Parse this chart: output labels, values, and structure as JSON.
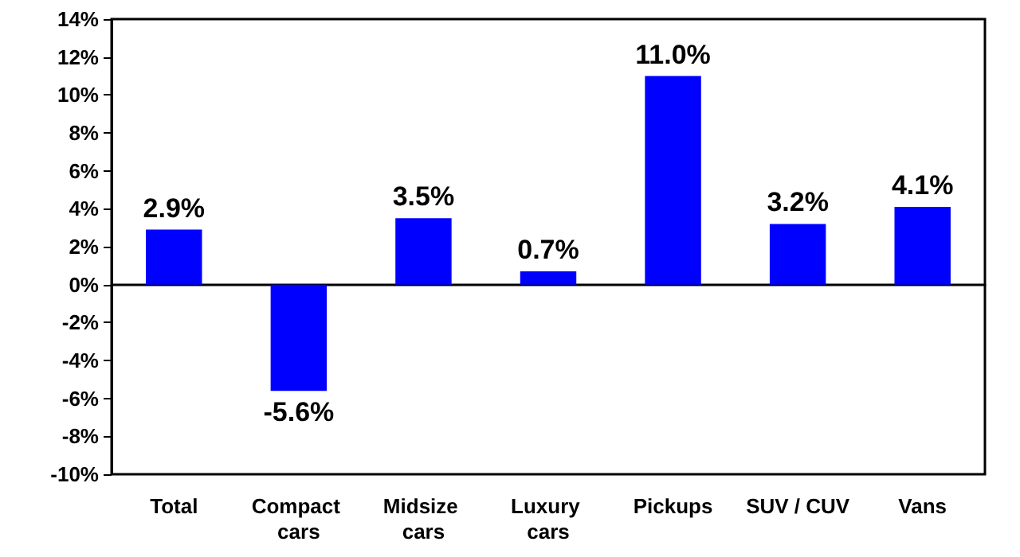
{
  "chart_data": {
    "type": "bar",
    "categories": [
      "Total",
      "Compact cars",
      "Midsize cars",
      "Luxury cars",
      "Pickups",
      "SUV / CUV",
      "Vans"
    ],
    "values": [
      2.9,
      -5.6,
      3.5,
      0.7,
      11.0,
      3.2,
      4.1
    ],
    "value_labels": [
      "2.9%",
      "-5.6%",
      "3.5%",
      "0.7%",
      "11.0%",
      "3.2%",
      "4.1%"
    ],
    "ylim": [
      -10,
      14
    ],
    "yticks": [
      {
        "value": -10,
        "label": "-10%"
      },
      {
        "value": -8,
        "label": "-8%"
      },
      {
        "value": -6,
        "label": "-6%"
      },
      {
        "value": -4,
        "label": "-4%"
      },
      {
        "value": -2,
        "label": "-2%"
      },
      {
        "value": 0,
        "label": "0%"
      },
      {
        "value": 2,
        "label": "2%"
      },
      {
        "value": 4,
        "label": "4%"
      },
      {
        "value": 6,
        "label": "6%"
      },
      {
        "value": 8,
        "label": "8%"
      },
      {
        "value": 10,
        "label": "10%"
      },
      {
        "value": 12,
        "label": "12%"
      },
      {
        "value": 14,
        "label": "14%"
      }
    ],
    "color": "#0000ff"
  }
}
